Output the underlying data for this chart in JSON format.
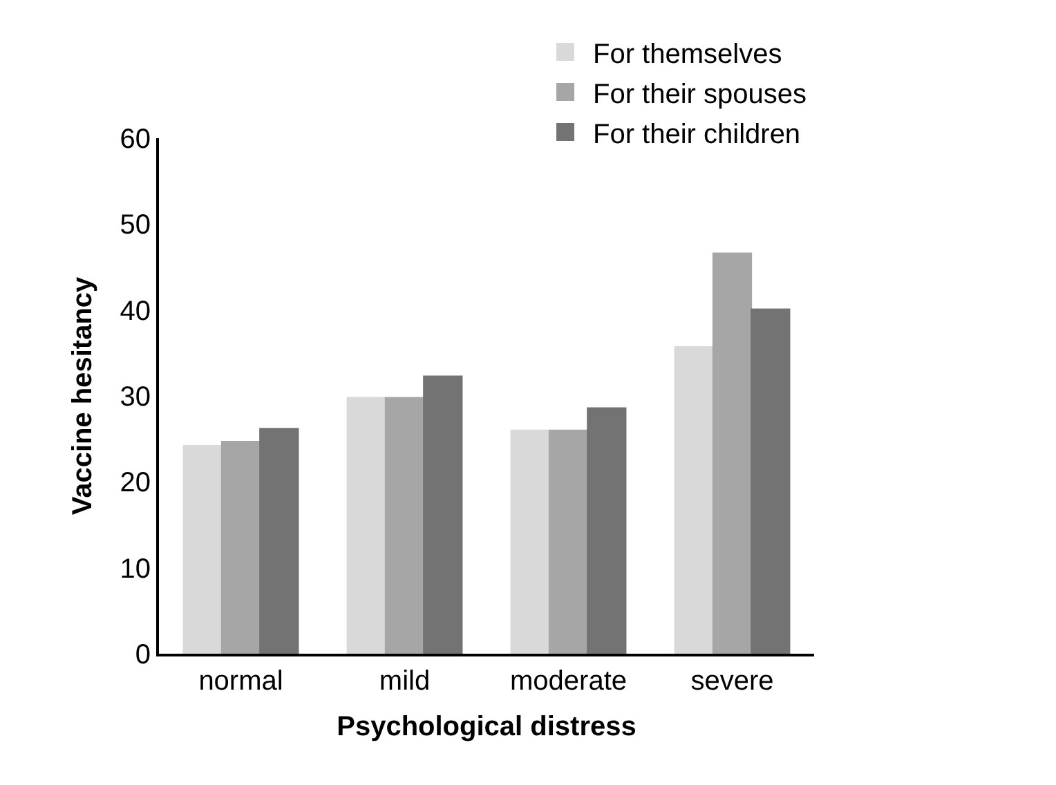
{
  "chart_data": {
    "type": "bar",
    "xlabel": "Psychological distress",
    "ylabel": "Vaccine hesitancy",
    "categories": [
      "normal",
      "mild",
      "moderate",
      "severe"
    ],
    "series": [
      {
        "name": "For themselves",
        "color": "#d9d9d9",
        "values": [
          24.2,
          29.8,
          26.0,
          35.7
        ]
      },
      {
        "name": "For their spouses",
        "color": "#a6a6a6",
        "values": [
          24.7,
          29.8,
          26.0,
          46.6
        ]
      },
      {
        "name": "For their children",
        "color": "#737373",
        "values": [
          26.2,
          32.3,
          28.6,
          40.1
        ]
      }
    ],
    "ylim": [
      0,
      60
    ],
    "yticks": [
      0,
      10,
      20,
      30,
      40,
      50,
      60
    ],
    "legend": "top right"
  }
}
